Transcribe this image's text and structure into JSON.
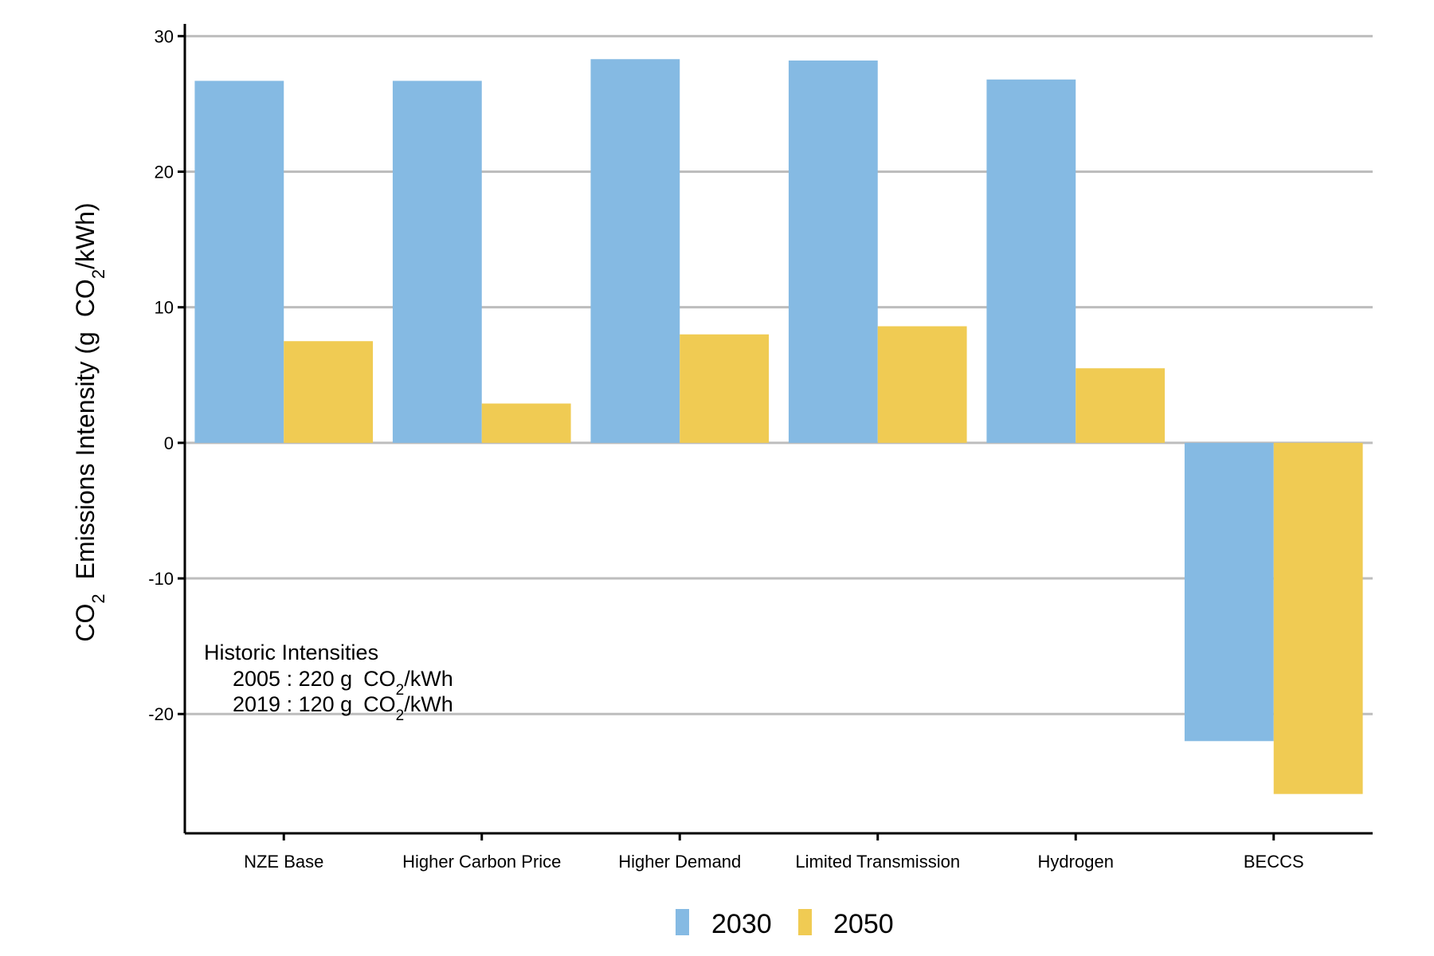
{
  "chart_data": {
    "type": "bar",
    "categories": [
      "NZE Base",
      "Higher Carbon Price",
      "Higher Demand",
      "Limited Transmission",
      "Hydrogen",
      "BECCS"
    ],
    "series": [
      {
        "name": "2030",
        "color": "#85bae3",
        "values": [
          26.7,
          26.7,
          28.3,
          28.2,
          26.8,
          -22.0
        ]
      },
      {
        "name": "2050",
        "color": "#f0cb53",
        "values": [
          7.5,
          2.9,
          8.0,
          8.6,
          5.5,
          -25.9
        ]
      }
    ],
    "ylim": [
      -28.8,
      30.9
    ],
    "yticks": [
      -20,
      -10,
      0,
      10,
      20,
      30
    ],
    "ytick_labels": [
      "-20",
      "-10",
      "0",
      "10",
      "20",
      "30"
    ],
    "ylabel": {
      "p1": "CO",
      "sub1": "2",
      "p2": "Emissions Intensity (g",
      "p3": "CO",
      "sub2": "2",
      "p4": "/kWh)"
    },
    "grid": "horizontal",
    "legend_position": "bottom",
    "annotation": {
      "title": "Historic Intensities",
      "line1": {
        "pre": "2005 : 220 g",
        "co": "CO",
        "sub": "2",
        "post": "/kWh"
      },
      "line2": {
        "pre": "2019 : 120 g",
        "co": "CO",
        "sub": "2",
        "post": "/kWh"
      }
    }
  }
}
